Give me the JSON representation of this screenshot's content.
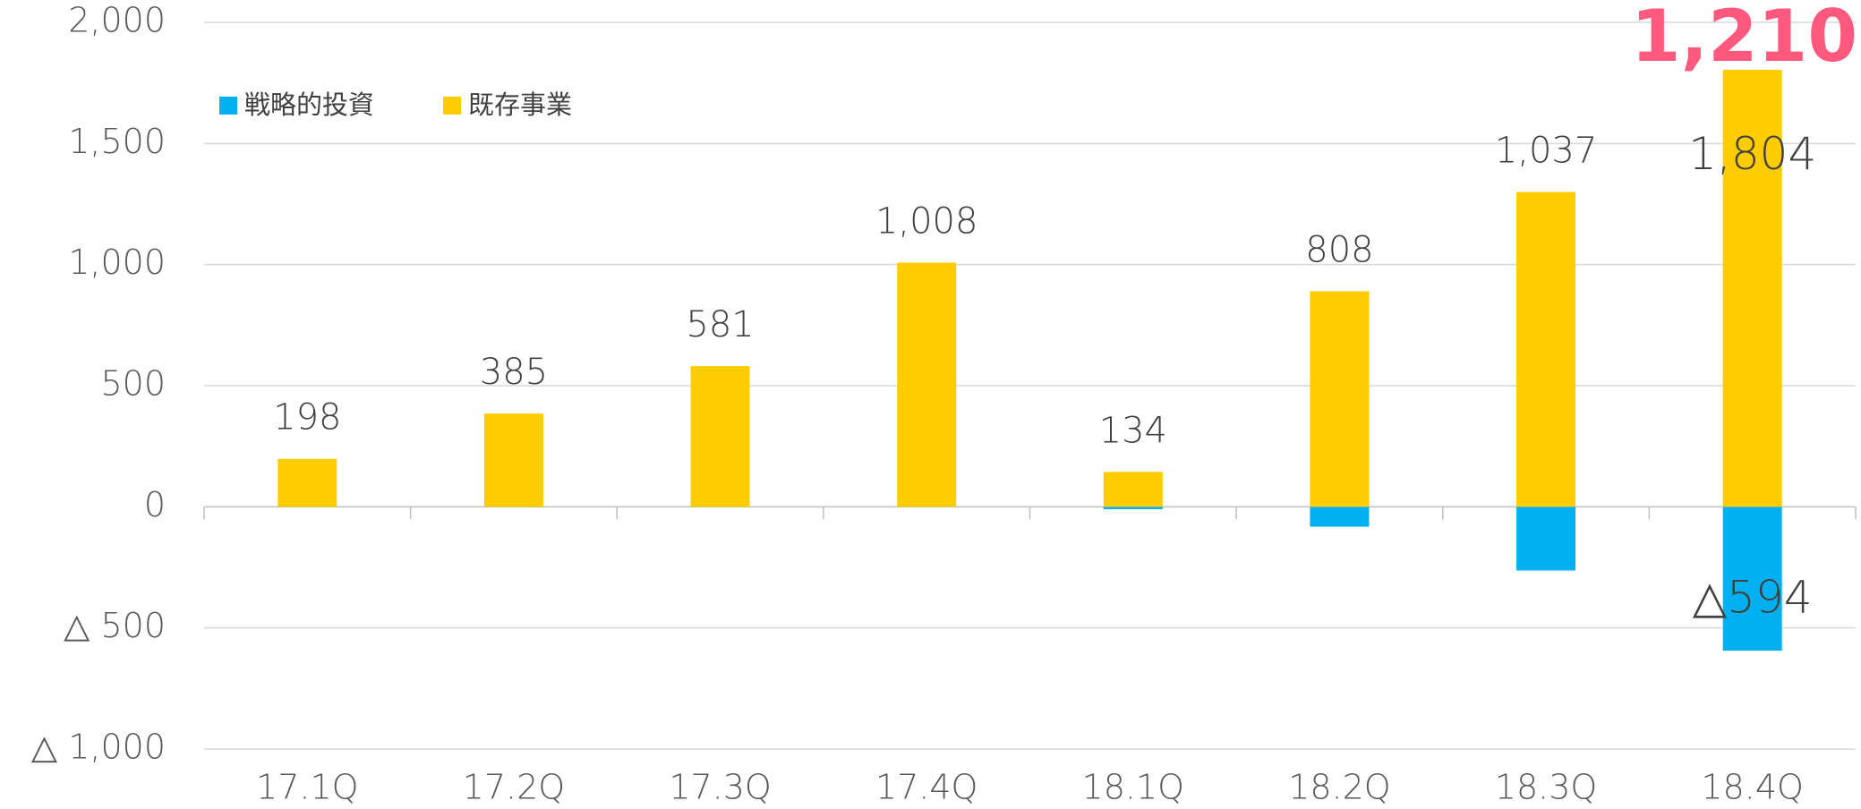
{
  "chart_data": {
    "type": "stacked_bar",
    "categories": [
      "17.1Q",
      "17.2Q",
      "17.3Q",
      "17.4Q",
      "18.1Q",
      "18.2Q",
      "18.3Q",
      "18.4Q"
    ],
    "series": [
      {
        "name": "戦略的投資",
        "color": "#00b0f0",
        "values": [
          0,
          0,
          0,
          0,
          -10,
          -82,
          -263,
          -594
        ],
        "value_labels": [
          null,
          null,
          null,
          null,
          null,
          null,
          null,
          "△594"
        ]
      },
      {
        "name": "既存事業",
        "color": "#ffcc00",
        "values": [
          198,
          385,
          581,
          1008,
          144,
          890,
          1300,
          1804
        ],
        "value_labels": [
          null,
          null,
          null,
          null,
          null,
          null,
          null,
          "1,804"
        ]
      }
    ],
    "totals": {
      "values": [
        198,
        385,
        581,
        1008,
        134,
        808,
        1037,
        1210
      ],
      "value_labels": [
        "198",
        "385",
        "581",
        "1,008",
        "134",
        "808",
        "1,037",
        "1,210"
      ]
    },
    "ylim": [
      -1000,
      2000
    ],
    "yticks": [
      {
        "value": -1000,
        "label": "△ 1,000"
      },
      {
        "value": -500,
        "label": "△ 500"
      },
      0,
      500,
      {
        "value": 1000,
        "label": "1,000"
      },
      {
        "value": 1500,
        "label": "1,500"
      },
      {
        "value": 2000,
        "label": "2,000"
      }
    ],
    "grid": true,
    "legend": "top-left"
  }
}
